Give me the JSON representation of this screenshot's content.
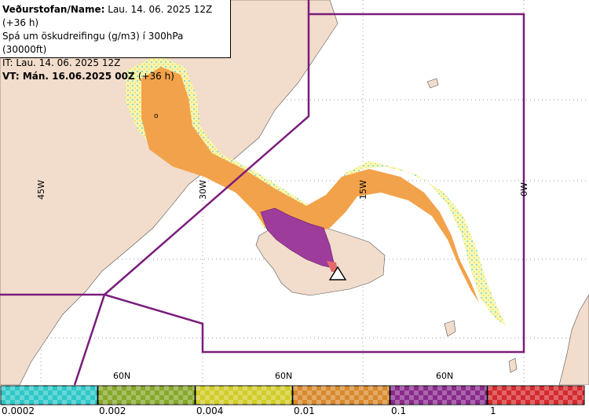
{
  "header": {
    "name_label": "Veðurstofan/Name:",
    "name_value": "Lau. 14. 06. 2025 12Z (+36 h)",
    "forecast_desc": "Spá um öskudreifingu (g/m3) í 300hPa (30000ft)",
    "it_line": "IT: Lau. 14. 06. 2025 12Z",
    "vt_label": "VT:",
    "vt_value": "Mán. 16.06.2025 00Z",
    "vt_offset": "(+36 h)"
  },
  "map": {
    "longitude_labels": [
      "45W",
      "30W",
      "15W",
      "0W"
    ],
    "latitude_labels": [
      "60N",
      "60N",
      "60N"
    ],
    "point_label": "o",
    "colors": {
      "sea": "#ffffff",
      "land": "#f2dccb",
      "boundary": "#7a1c7c",
      "ash_low": "#f2a24a",
      "ash_mid": "#9e3c9c"
    }
  },
  "legend": {
    "ticks": [
      "0.0002",
      "0.002",
      "0.004",
      "0.01",
      "0.1",
      "1"
    ],
    "colors": [
      "#2ec8c8",
      "#86a82a",
      "#d2cc28",
      "#d8892c",
      "#8a2a8c",
      "#d42a2e"
    ]
  }
}
